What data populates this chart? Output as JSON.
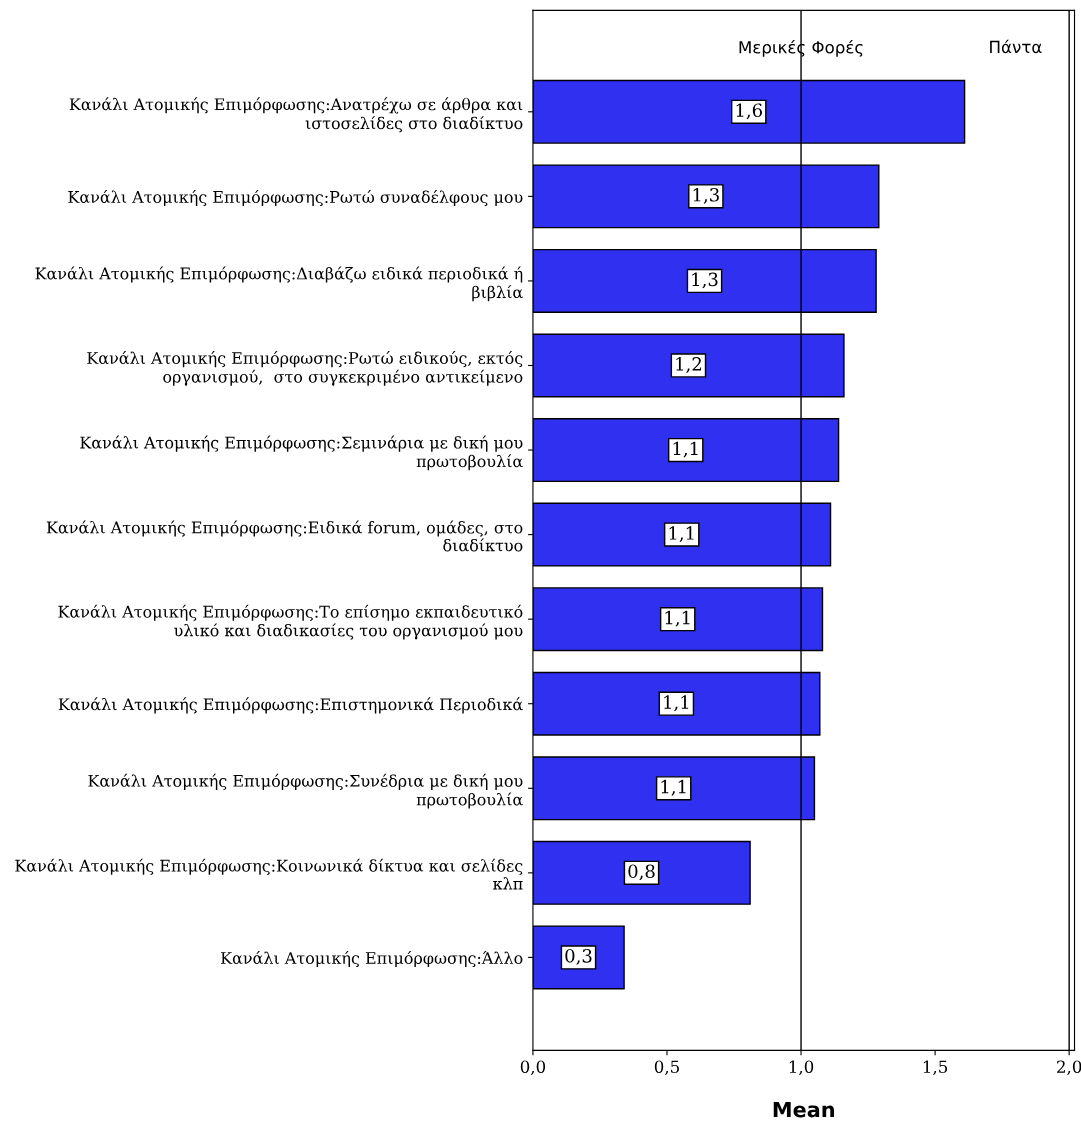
{
  "chart_data": {
    "type": "bar",
    "orientation": "horizontal",
    "xlabel": "Mean",
    "categories": [
      "Κανάλι Ατομικής Επιμόρφωσης:Ανατρέχω σε άρθρα και\nιστοσελίδες στο διαδίκτυο",
      "Κανάλι Ατομικής Επιμόρφωσης:Ρωτώ συναδέλφους μου",
      "Κανάλι Ατομικής Επιμόρφωσης:Διαβάζω ειδικά περιοδικά ή\nβιβλία",
      "Κανάλι Ατομικής Επιμόρφωσης:Ρωτώ ειδικούς, εκτός\nοργανισμού,  στο συγκεκριμένο αντικείμενο",
      "Κανάλι Ατομικής Επιμόρφωσης:Σεμινάρια με δική μου\nπρωτοβουλία",
      "Κανάλι Ατομικής Επιμόρφωσης:Ειδικά forum, ομάδες, στο\nδιαδίκτυο",
      "Κανάλι Ατομικής Επιμόρφωσης:Το επίσημο εκπαιδευτικό\nυλικό και διαδικασίες του οργανισμού μου",
      "Κανάλι Ατομικής Επιμόρφωσης:Επιστημονικά Περιοδικά",
      "Κανάλι Ατομικής Επιμόρφωσης:Συνέδρια με δική μου\nπρωτοβουλία",
      "Κανάλι Ατομικής Επιμόρφωσης:Κοινωνικά δίκτυα και σελίδες\nκλπ",
      "Κανάλι Ατομικής Επιμόρφωσης:Άλλο"
    ],
    "values": [
      1.61,
      1.29,
      1.28,
      1.16,
      1.14,
      1.11,
      1.08,
      1.07,
      1.05,
      0.81,
      0.34
    ],
    "value_labels": [
      "1,6",
      "1,3",
      "1,3",
      "1,2",
      "1,1",
      "1,1",
      "1,1",
      "1,1",
      "1,1",
      "0,8",
      "0,3"
    ],
    "color": "#3030f0",
    "xlim": [
      0,
      2.02
    ],
    "xticks": [
      {
        "value": 0,
        "label": "0,0"
      },
      {
        "value": 0.5,
        "label": "0,5"
      },
      {
        "value": 1.0,
        "label": "1,0"
      },
      {
        "value": 1.5,
        "label": "1,5"
      },
      {
        "value": 2.0,
        "label": "2,0"
      }
    ],
    "ref_lines": [
      {
        "axis": "x",
        "value": 1.0,
        "label": "Μερικές Φορές",
        "color": "#000000"
      },
      {
        "axis": "x",
        "value": 2.0,
        "label": "Πάντα",
        "color": "#000000"
      }
    ],
    "grid": false,
    "legend": false
  }
}
